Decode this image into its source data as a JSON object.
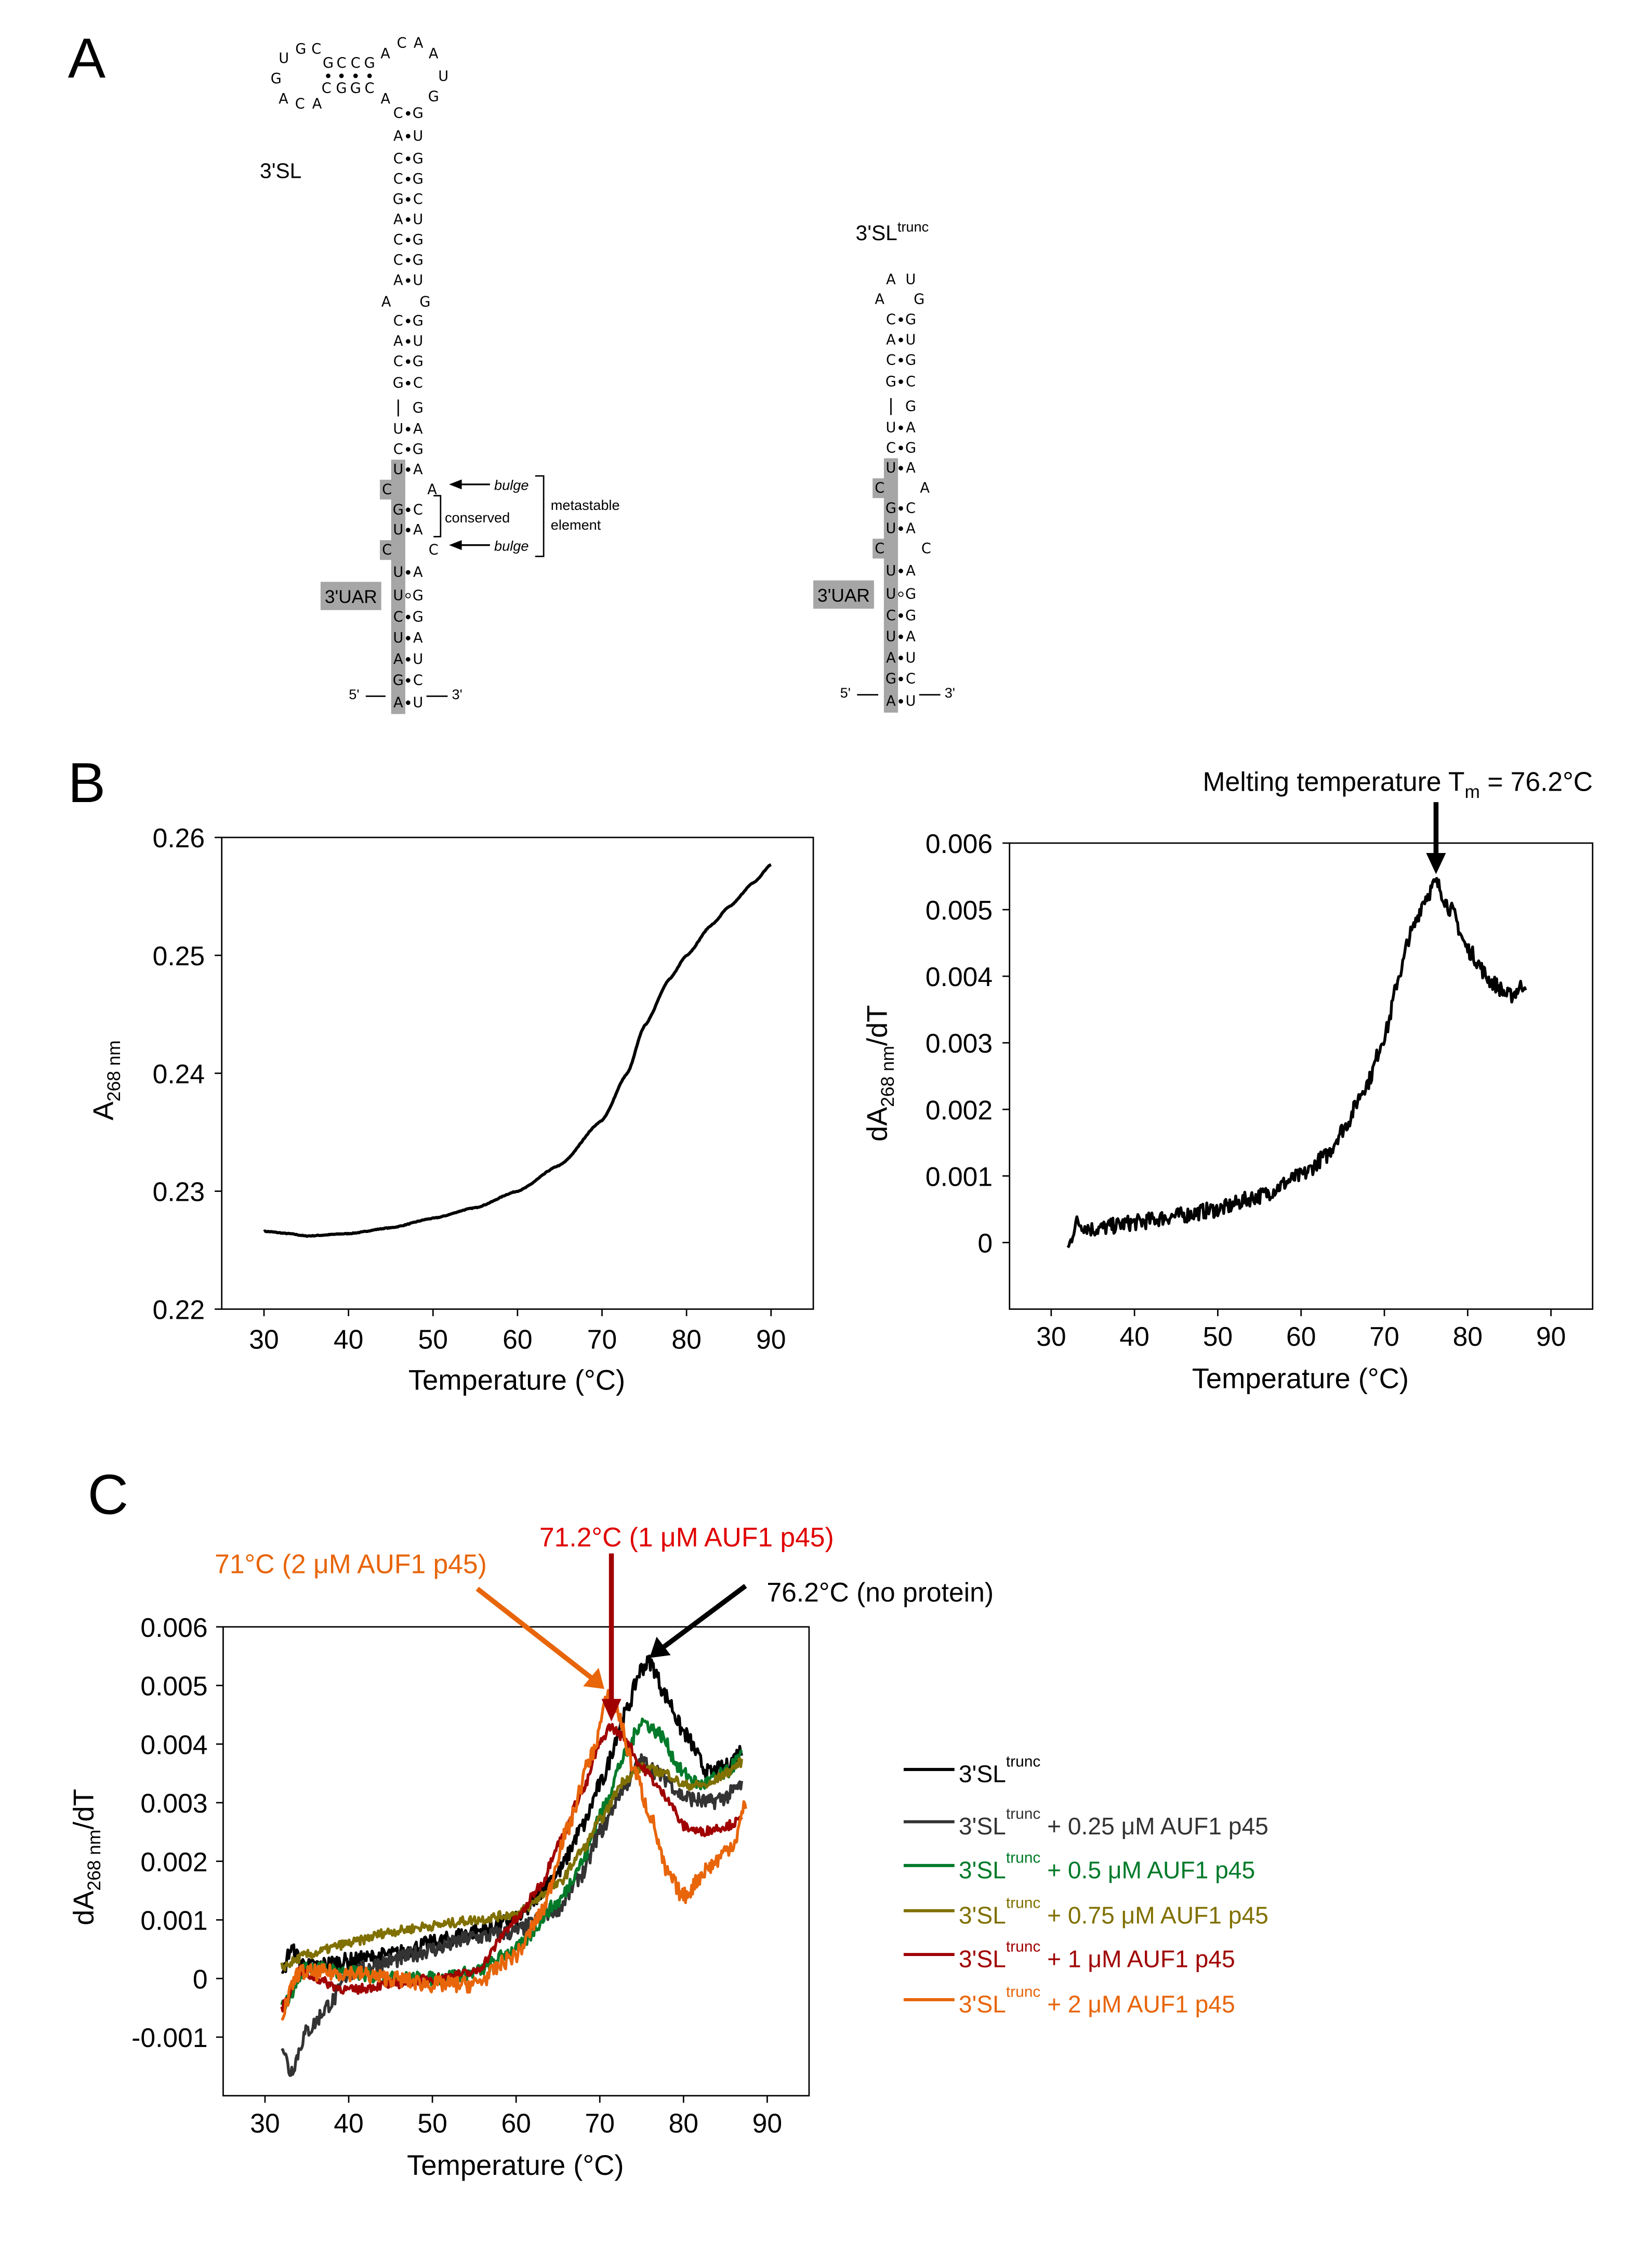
{
  "panels": {
    "a": "A",
    "b": "B",
    "c": "C"
  },
  "structure_3SL": {
    "label": "3'SL",
    "loop": [
      "U",
      "G",
      "C",
      "G",
      "C",
      "C",
      "G",
      "A",
      "C",
      "A",
      "A",
      "U",
      "G",
      "A",
      "C",
      "G",
      "G",
      "C",
      "A",
      "C",
      "A",
      "G"
    ],
    "stem": [
      {
        "l": "C",
        "b": "•",
        "r": "G"
      },
      {
        "l": "A",
        "b": "•",
        "r": "U"
      },
      {
        "l": "C",
        "b": "•",
        "r": "G"
      },
      {
        "l": "C",
        "b": "•",
        "r": "G"
      },
      {
        "l": "G",
        "b": "•",
        "r": "C"
      },
      {
        "l": "A",
        "b": "•",
        "r": "U"
      },
      {
        "l": "C",
        "b": "•",
        "r": "G"
      },
      {
        "l": "C",
        "b": "•",
        "r": "G"
      },
      {
        "l": "A",
        "b": "•",
        "r": "U"
      },
      {
        "l": "A",
        "b": "",
        "r": "G"
      },
      {
        "l": "C",
        "b": "•",
        "r": "G"
      },
      {
        "l": "A",
        "b": "•",
        "r": "U"
      },
      {
        "l": "C",
        "b": "•",
        "r": "G"
      },
      {
        "l": "G",
        "b": "•",
        "r": "C"
      },
      {
        "l": "|",
        "b": "",
        "r": "G"
      },
      {
        "l": "U",
        "b": "•",
        "r": "A"
      },
      {
        "l": "C",
        "b": "•",
        "r": "G"
      },
      {
        "l": "U",
        "b": "•",
        "r": "A"
      },
      {
        "l": "C",
        "b": "",
        "r": "A"
      },
      {
        "l": "G",
        "b": "•",
        "r": "C"
      },
      {
        "l": "U",
        "b": "•",
        "r": "A"
      },
      {
        "l": "C",
        "b": "",
        "r": "C"
      },
      {
        "l": "U",
        "b": "•",
        "r": "A"
      },
      {
        "l": "U",
        "b": "∘",
        "r": "G"
      },
      {
        "l": "C",
        "b": "•",
        "r": "G"
      },
      {
        "l": "U",
        "b": "•",
        "r": "A"
      },
      {
        "l": "A",
        "b": "•",
        "r": "U"
      },
      {
        "l": "G",
        "b": "•",
        "r": "C"
      },
      {
        "l": "A",
        "b": "•",
        "r": "U"
      }
    ],
    "five_prime": "5'",
    "three_prime": "3'",
    "uar_label": "3'UAR",
    "bulge_label": "bulge",
    "conserved_label": "conserved",
    "metastable_label_1": "metastable",
    "metastable_label_2": "element"
  },
  "structure_trunc": {
    "label_base": "3'SL",
    "label_sup": "trunc",
    "cap": [
      {
        "l": "A",
        "r": "U"
      },
      {
        "l": "A",
        "r": "G"
      }
    ],
    "uar_label": "3'UAR",
    "five_prime": "5'",
    "three_prime": "3'"
  },
  "chart_data": [
    {
      "id": "B-left",
      "type": "line",
      "xlabel": "Temperature (°C)",
      "ylabel_main": "A",
      "ylabel_sub": "268 nm",
      "ylabel_tail": "",
      "xlim": [
        25,
        95
      ],
      "ylim": [
        0.22,
        0.26
      ],
      "xticks": [
        30,
        40,
        50,
        60,
        70,
        80,
        90
      ],
      "yticks": [
        0.22,
        0.23,
        0.24,
        0.25,
        0.26
      ],
      "ytick_labels": [
        "0.22",
        "0.23",
        "0.24",
        "0.25",
        "0.26"
      ],
      "series": [
        {
          "name": "3'SL",
          "color": "#000000",
          "noise": 3e-05,
          "x": [
            30,
            33,
            35,
            40,
            45,
            50,
            55,
            60,
            65,
            70,
            73,
            75,
            78,
            80,
            83,
            85,
            88,
            90
          ],
          "y": [
            0.2266,
            0.2264,
            0.2262,
            0.2264,
            0.2269,
            0.2277,
            0.2286,
            0.23,
            0.2322,
            0.236,
            0.24,
            0.244,
            0.248,
            0.25,
            0.2526,
            0.2541,
            0.2562,
            0.2577
          ]
        }
      ]
    },
    {
      "id": "B-right",
      "type": "line",
      "xlabel": "Temperature (°C)",
      "ylabel_main": "dA",
      "ylabel_sub": "268 nm",
      "ylabel_tail": "/dT",
      "xlim": [
        25,
        95
      ],
      "ylim": [
        -0.001,
        0.006
      ],
      "xticks": [
        30,
        40,
        50,
        60,
        70,
        80,
        90
      ],
      "yticks": [
        0,
        0.001,
        0.002,
        0.003,
        0.004,
        0.005,
        0.006
      ],
      "ytick_labels": [
        "0",
        "0.001",
        "0.002",
        "0.003",
        "0.004",
        "0.005",
        "0.006"
      ],
      "annotation": {
        "text_main": "Melting temperature T",
        "text_sub": "m",
        "text_tail": " = 76.2°C",
        "x": 76.2
      },
      "series": [
        {
          "name": "3'SL",
          "color": "#000000",
          "noise": 0.00012,
          "x": [
            32,
            33,
            35,
            40,
            45,
            50,
            55,
            60,
            63,
            65,
            68,
            70,
            72,
            73,
            75,
            76.2,
            78,
            80,
            83,
            85,
            87
          ],
          "y": [
            -0.0001,
            0.0003,
            0.0002,
            0.0003,
            0.0004,
            0.0005,
            0.0007,
            0.001,
            0.0013,
            0.0017,
            0.0024,
            0.0031,
            0.0041,
            0.0046,
            0.0052,
            0.0054,
            0.005,
            0.0044,
            0.0039,
            0.0037,
            0.0039
          ]
        }
      ]
    },
    {
      "id": "C",
      "type": "line",
      "xlabel": "Temperature (°C)",
      "ylabel_main": "dA",
      "ylabel_sub": "268 nm",
      "ylabel_tail": "/dT",
      "xlim": [
        25,
        95
      ],
      "ylim": [
        -0.002,
        0.006
      ],
      "xticks": [
        30,
        40,
        50,
        60,
        70,
        80,
        90
      ],
      "yticks": [
        -0.001,
        0,
        0.001,
        0.002,
        0.003,
        0.004,
        0.005,
        0.006
      ],
      "ytick_labels": [
        "-0.001",
        "0",
        "0.001",
        "0.002",
        "0.003",
        "0.004",
        "0.005",
        "0.006"
      ],
      "annotations": [
        {
          "text": "71°C (2 μM AUF1 p45)",
          "color": "#e8650a"
        },
        {
          "text": "71.2°C (1 μM AUF1 p45)",
          "color": "#e00000"
        },
        {
          "text": "76.2°C (no protein)",
          "color": "#000000"
        }
      ],
      "series": [
        {
          "name_base": "3'SL",
          "name_sup": "trunc",
          "name_rest": "",
          "color": "#000000",
          "noise": 0.00014,
          "x": [
            32,
            33,
            35,
            40,
            45,
            50,
            55,
            60,
            65,
            68,
            70,
            73,
            75,
            76,
            78,
            80,
            83,
            85,
            87
          ],
          "y": [
            0.0,
            0.0005,
            0.0002,
            0.0003,
            0.0004,
            0.0006,
            0.0008,
            0.001,
            0.0018,
            0.0026,
            0.0033,
            0.0045,
            0.0053,
            0.0054,
            0.0048,
            0.0042,
            0.0035,
            0.0036,
            0.0039
          ]
        },
        {
          "name_base": "3'SL",
          "name_sup": "trunc",
          "name_rest": " + 0.25 μM AUF1 p45",
          "color": "#333333",
          "noise": 0.00014,
          "x": [
            32,
            33,
            35,
            38,
            40,
            45,
            50,
            55,
            60,
            65,
            68,
            70,
            73,
            75,
            78,
            80,
            83,
            85,
            87
          ],
          "y": [
            -0.0011,
            -0.0016,
            -0.0009,
            -0.0004,
            0.0001,
            0.0003,
            0.0005,
            0.0007,
            0.0008,
            0.0012,
            0.0018,
            0.0025,
            0.0033,
            0.0037,
            0.0034,
            0.0031,
            0.003,
            0.0031,
            0.0033
          ]
        },
        {
          "name_base": "3'SL",
          "name_sup": "trunc",
          "name_rest": " + 0.5 μM AUF1 p45",
          "color": "#007a2a",
          "noise": 0.00012,
          "x": [
            32,
            35,
            40,
            45,
            50,
            55,
            60,
            65,
            68,
            70,
            73,
            75,
            77,
            80,
            82,
            85,
            87
          ],
          "y": [
            -0.0005,
            0.0002,
            0.0001,
            0.0,
            0.0,
            0.0001,
            0.0005,
            0.0013,
            0.002,
            0.0028,
            0.0038,
            0.0044,
            0.0042,
            0.0035,
            0.0033,
            0.0035,
            0.0038
          ]
        },
        {
          "name_base": "3'SL",
          "name_sup": "trunc",
          "name_rest": " + 0.75 μM AUF1 p45",
          "color": "#807000",
          "noise": 8e-05,
          "x": [
            32,
            35,
            40,
            45,
            50,
            55,
            60,
            65,
            68,
            70,
            73,
            75,
            78,
            80,
            83,
            85,
            87
          ],
          "y": [
            0.0002,
            0.0004,
            0.0006,
            0.0008,
            0.0009,
            0.001,
            0.0011,
            0.0016,
            0.0022,
            0.0027,
            0.0034,
            0.0036,
            0.0035,
            0.0033,
            0.0033,
            0.0035,
            0.0037
          ]
        },
        {
          "name_base": "3'SL",
          "name_sup": "trunc",
          "name_rest": " + 1 μM AUF1 p45",
          "color": "#a00000",
          "noise": 8e-05,
          "x": [
            32,
            34,
            40,
            45,
            50,
            55,
            60,
            63,
            65,
            68,
            70,
            71.2,
            73,
            75,
            78,
            80,
            82,
            85,
            87
          ],
          "y": [
            -0.0005,
            0.0001,
            -0.0002,
            -0.0001,
            0.0,
            0.0001,
            0.001,
            0.0016,
            0.0023,
            0.0032,
            0.004,
            0.0043,
            0.0041,
            0.0036,
            0.0031,
            0.0026,
            0.0025,
            0.0026,
            0.0027
          ]
        },
        {
          "name_base": "3'SL",
          "name_sup": "trunc",
          "name_rest": " + 2 μM AUF1 p45",
          "color": "#e8650a",
          "noise": 0.00014,
          "x": [
            32,
            34,
            40,
            45,
            50,
            55,
            60,
            63,
            66,
            69,
            71,
            72,
            74,
            76,
            78,
            80,
            83,
            86,
            87.5
          ],
          "y": [
            -0.0006,
            0.0001,
            0.0001,
            0.0,
            -0.0001,
            -0.0001,
            0.0004,
            0.0011,
            0.0025,
            0.0038,
            0.0048,
            0.0046,
            0.0036,
            0.0028,
            0.0018,
            0.0014,
            0.0019,
            0.0023,
            0.003
          ]
        }
      ]
    }
  ]
}
